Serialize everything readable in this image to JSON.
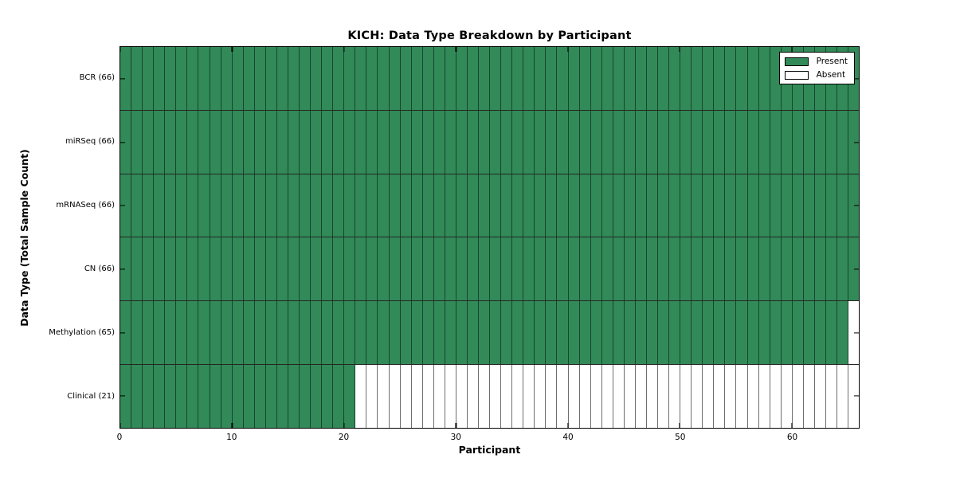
{
  "chart": {
    "title": "KICH: Data Type Breakdown by Participant",
    "xlabel": "Participant",
    "ylabel": "Data Type (Total Sample Count)"
  },
  "legend": {
    "position": "upper right",
    "items": [
      {
        "label": "Present",
        "color": "#318a58"
      },
      {
        "label": "Absent",
        "color": "#ffffff"
      }
    ]
  },
  "chart_data": {
    "type": "heatmap",
    "title": "KICH: Data Type Breakdown by Participant",
    "cohort": "KICH",
    "xlabel": "Participant",
    "ylabel": "Data Type (Total Sample Count)",
    "x_ticks": [
      0,
      10,
      20,
      30,
      40,
      50,
      60
    ],
    "xlim": [
      0,
      66
    ],
    "n_participants": 66,
    "colors": {
      "present": "#318a58",
      "absent": "#ffffff",
      "cell_edge": "#000000"
    },
    "grid": "cell-borders",
    "legend_position": "upper right",
    "rows": [
      {
        "label": "BCR (66)",
        "data_type": "BCR",
        "sample_count": 66,
        "absent_ranges": []
      },
      {
        "label": "miRSeq (66)",
        "data_type": "miRSeq",
        "sample_count": 66,
        "absent_ranges": []
      },
      {
        "label": "mRNASeq (66)",
        "data_type": "mRNASeq",
        "sample_count": 66,
        "absent_ranges": []
      },
      {
        "label": "CN (66)",
        "data_type": "CN",
        "sample_count": 66,
        "absent_ranges": []
      },
      {
        "label": "Methylation (65)",
        "data_type": "Methylation",
        "sample_count": 65,
        "absent_ranges": [
          [
            65,
            65
          ]
        ]
      },
      {
        "label": "Clinical (21)",
        "data_type": "Clinical",
        "sample_count": 21,
        "absent_ranges": [
          [
            21,
            65
          ]
        ]
      }
    ]
  }
}
